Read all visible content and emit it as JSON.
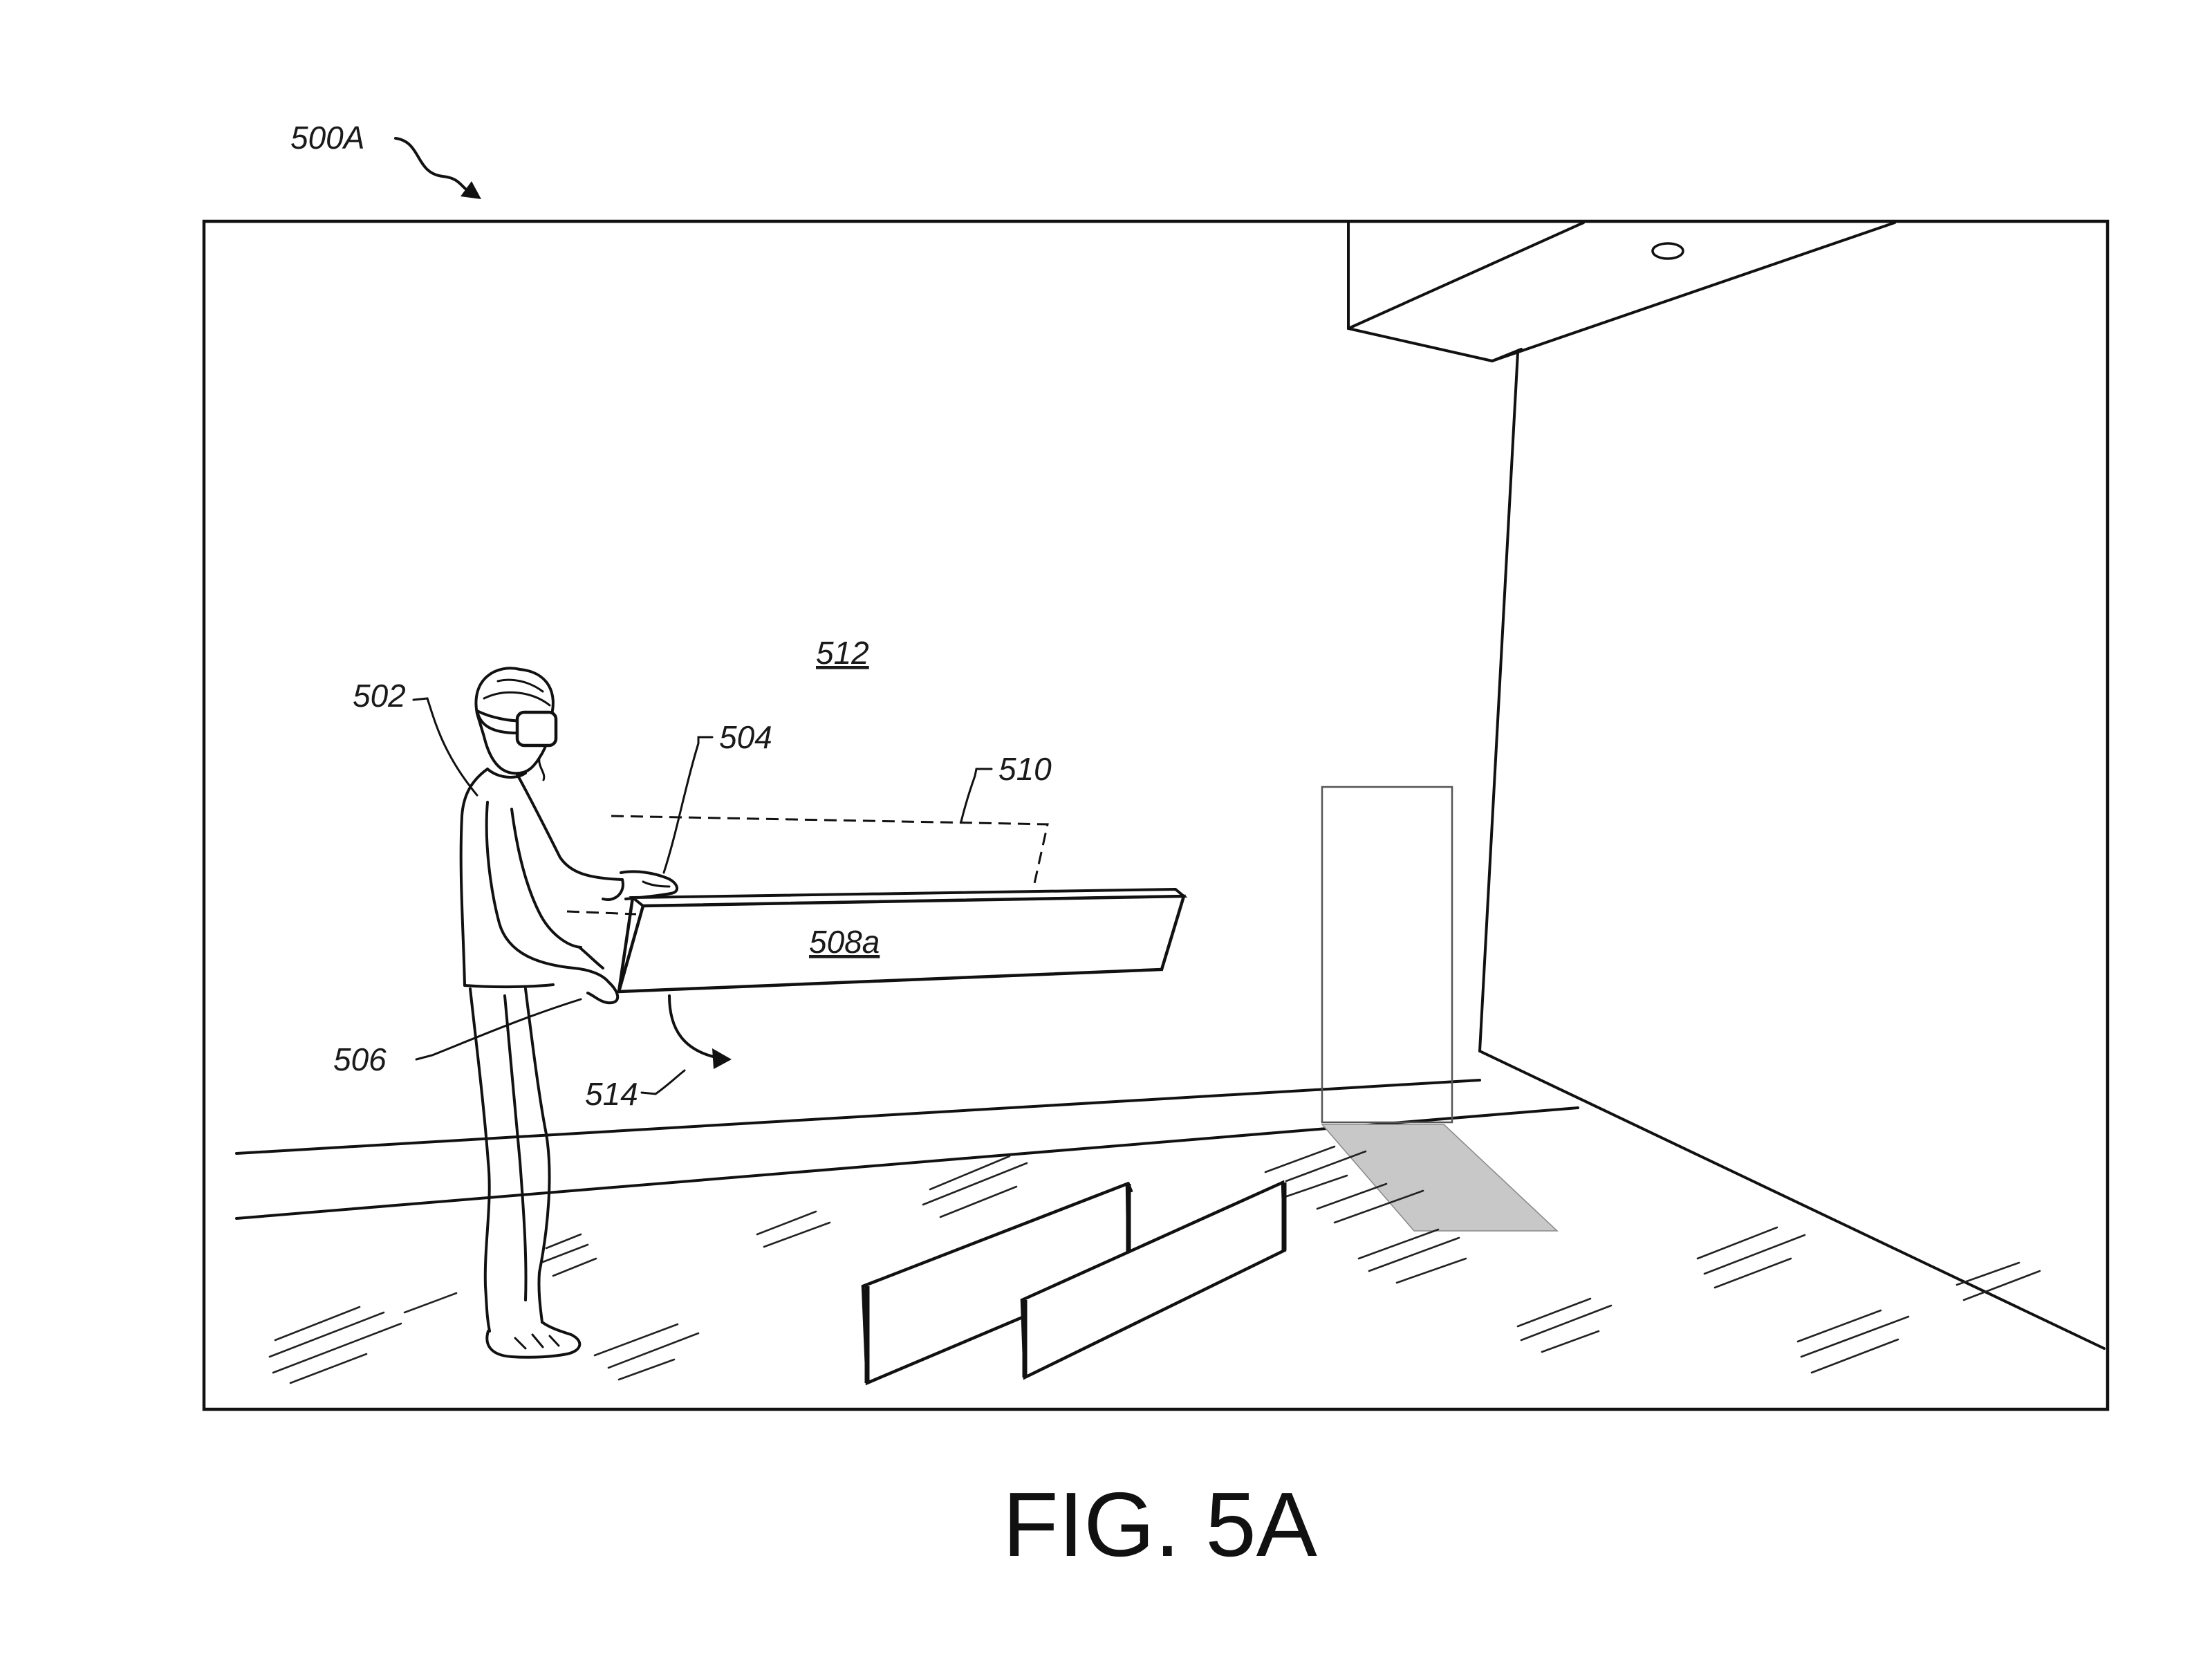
{
  "figure": {
    "ref_label": "500A",
    "caption": "FIG. 5A",
    "labels": {
      "user": "502",
      "hand_right": "504",
      "hand_left": "506",
      "board_held": "508a",
      "placement_outline": "510",
      "environment": "512",
      "rotation": "514"
    }
  },
  "icons": {
    "headset": "vr-headset-icon",
    "arrow": "curved-arrow-icon"
  }
}
